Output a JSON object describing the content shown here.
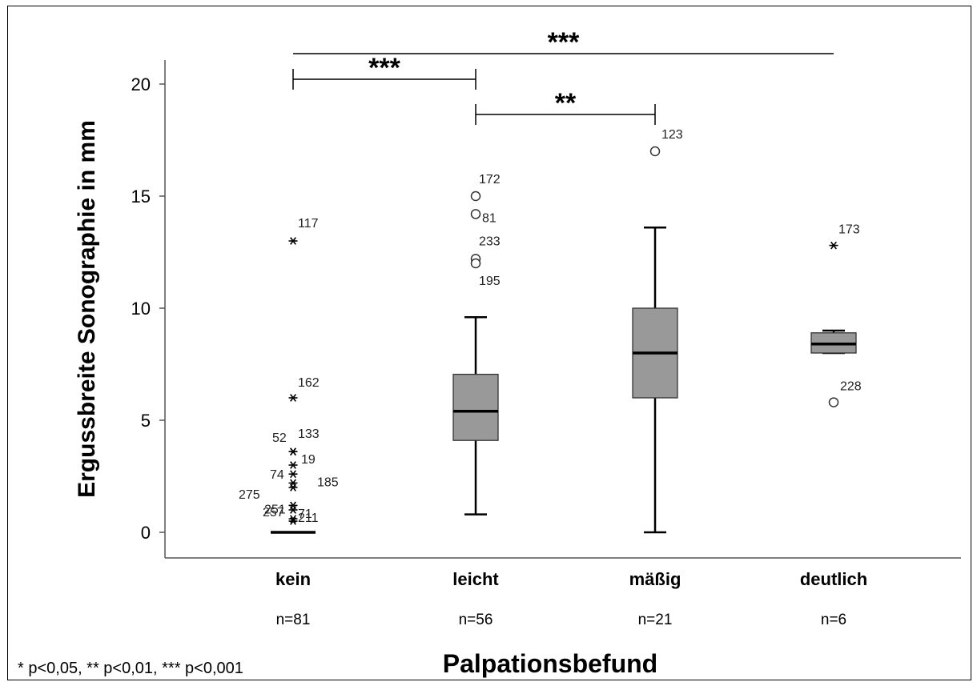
{
  "chart_data": {
    "type": "box",
    "xlabel": "Palpationsbefund",
    "ylabel": "Ergussbreite Sonographie in mm",
    "ylim": [
      -0.6,
      20.6
    ],
    "yticks": [
      0,
      5,
      10,
      15,
      20
    ],
    "grid": false,
    "groups": [
      {
        "category": "kein",
        "n_label": "n=81",
        "min": 0,
        "q1": 0,
        "median": 0,
        "q3": 0,
        "max": 0,
        "points": [
          {
            "id": "117",
            "value": 13.0,
            "marker": "star"
          },
          {
            "id": "162",
            "value": 6.0,
            "marker": "star"
          },
          {
            "id": "52",
            "value": 3.6,
            "marker": "star"
          },
          {
            "id": "133",
            "value": 3.6,
            "marker": "star"
          },
          {
            "id": "74",
            "value": 2.6,
            "marker": "star"
          },
          {
            "id": "19",
            "value": 3.0,
            "marker": "star"
          },
          {
            "id": "275",
            "value": 2.0,
            "marker": "star"
          },
          {
            "id": "185",
            "value": 2.2,
            "marker": "star"
          },
          {
            "id": "251",
            "value": 1.2,
            "marker": "star"
          },
          {
            "id": "71",
            "value": 1.0,
            "marker": "star"
          },
          {
            "id": "257",
            "value": 0.6,
            "marker": "star"
          },
          {
            "id": "211",
            "value": 0.5,
            "marker": "star"
          }
        ]
      },
      {
        "category": "leicht",
        "n_label": "n=56",
        "min": 0.8,
        "q1": 4.1,
        "median": 5.4,
        "q3": 7.05,
        "max": 9.6,
        "points": [
          {
            "id": "172",
            "value": 15.0,
            "marker": "circle"
          },
          {
            "id": "81",
            "value": 14.2,
            "marker": "circle"
          },
          {
            "id": "233",
            "value": 12.2,
            "marker": "circle"
          },
          {
            "id": "195",
            "value": 12.0,
            "marker": "circle"
          }
        ]
      },
      {
        "category": "mäßig",
        "n_label": "n=21",
        "min": 0,
        "q1": 6.0,
        "median": 8.0,
        "q3": 10.0,
        "max": 13.6,
        "points": [
          {
            "id": "123",
            "value": 17.0,
            "marker": "circle"
          }
        ]
      },
      {
        "category": "deutlich",
        "n_label": "n=6",
        "min": 8.0,
        "q1": 8.0,
        "median": 8.4,
        "q3": 8.9,
        "max": 9.0,
        "points": [
          {
            "id": "173",
            "value": 12.8,
            "marker": "star"
          },
          {
            "id": "228",
            "value": 5.8,
            "marker": "circle"
          }
        ]
      }
    ],
    "significance": [
      {
        "from": "kein",
        "to": "deutlich",
        "label": "***"
      },
      {
        "from": "kein",
        "to": "leicht",
        "label": "***"
      },
      {
        "from": "leicht",
        "to": "mäßig",
        "label": "**"
      }
    ],
    "footnote": "* p<0,05, ** p<0,01, *** p<0,001"
  }
}
